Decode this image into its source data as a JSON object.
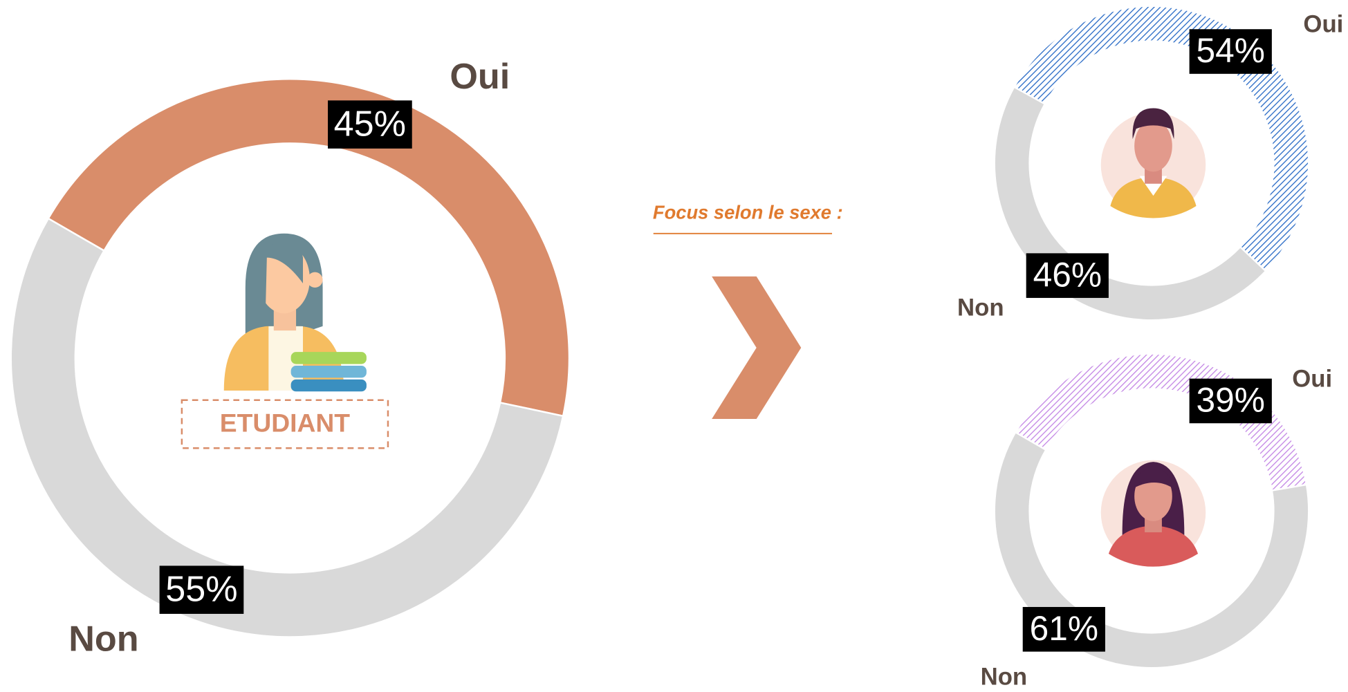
{
  "focus_label": "Focus selon le sexe :",
  "chart_data": [
    {
      "type": "donut",
      "center_label": "ETUDIANT",
      "categories": [
        "Oui",
        "Non"
      ],
      "values": [
        45,
        55
      ],
      "value_labels": [
        "45%",
        "55%"
      ],
      "colors": [
        "#d98d6a",
        "#d9d9d9"
      ],
      "hatched": false
    },
    {
      "type": "donut",
      "categories": [
        "Oui",
        "Non"
      ],
      "values": [
        54,
        46
      ],
      "value_labels": [
        "54%",
        "46%"
      ],
      "colors": [
        "#2f6fc8",
        "#d9d9d9"
      ],
      "hatched": true
    },
    {
      "type": "donut",
      "categories": [
        "Oui",
        "Non"
      ],
      "values": [
        39,
        61
      ],
      "value_labels": [
        "39%",
        "61%"
      ],
      "colors": [
        "#c58ae6",
        "#d9d9d9"
      ],
      "hatched": true
    }
  ]
}
